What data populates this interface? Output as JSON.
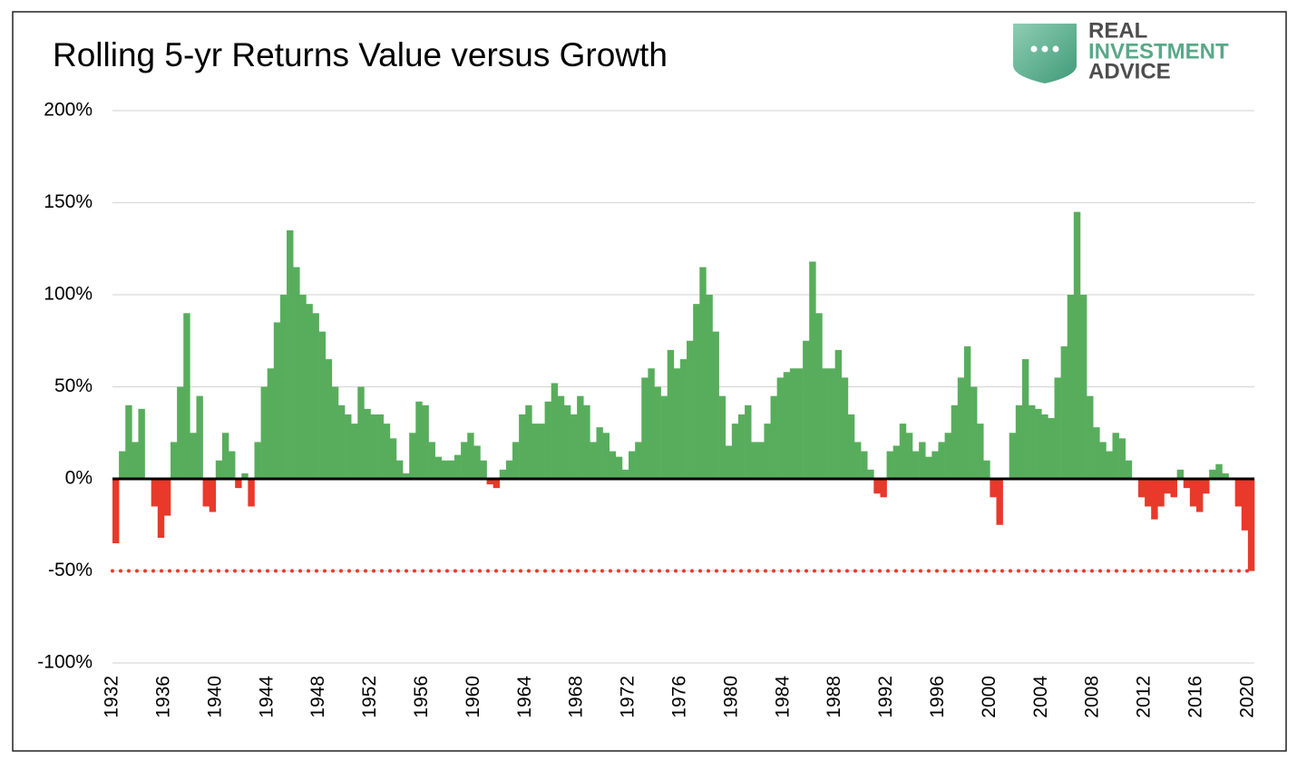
{
  "chart_data": {
    "type": "bar",
    "title": "Rolling 5-yr Returns  Value versus Growth",
    "logo": [
      "REAL",
      "INVESTMENT",
      "ADVICE"
    ],
    "x": [
      1932,
      1932.5,
      1933,
      1933.5,
      1934,
      1934.5,
      1935,
      1935.5,
      1936,
      1936.5,
      1937,
      1937.5,
      1938,
      1938.5,
      1939,
      1939.5,
      1940,
      1940.5,
      1941,
      1941.5,
      1942,
      1942.5,
      1943,
      1943.5,
      1944,
      1944.5,
      1945,
      1945.5,
      1946,
      1946.5,
      1947,
      1947.5,
      1948,
      1948.5,
      1949,
      1949.5,
      1950,
      1950.5,
      1951,
      1951.5,
      1952,
      1952.5,
      1953,
      1953.5,
      1954,
      1954.5,
      1955,
      1955.5,
      1956,
      1956.5,
      1957,
      1957.5,
      1958,
      1958.5,
      1959,
      1959.5,
      1960,
      1960.5,
      1961,
      1961.5,
      1962,
      1962.5,
      1963,
      1963.5,
      1964,
      1964.5,
      1965,
      1965.5,
      1966,
      1966.5,
      1967,
      1967.5,
      1968,
      1968.5,
      1969,
      1969.5,
      1970,
      1970.5,
      1971,
      1971.5,
      1972,
      1972.5,
      1973,
      1973.5,
      1974,
      1974.5,
      1975,
      1975.5,
      1976,
      1976.5,
      1977,
      1977.5,
      1978,
      1978.5,
      1979,
      1979.5,
      1980,
      1980.5,
      1981,
      1981.5,
      1982,
      1982.5,
      1983,
      1983.5,
      1984,
      1984.5,
      1985,
      1985.5,
      1986,
      1986.5,
      1987,
      1987.5,
      1988,
      1988.5,
      1989,
      1989.5,
      1990,
      1990.5,
      1991,
      1991.5,
      1992,
      1992.5,
      1993,
      1993.5,
      1994,
      1994.5,
      1995,
      1995.5,
      1996,
      1996.5,
      1997,
      1997.5,
      1998,
      1998.5,
      1999,
      1999.5,
      2000,
      2000.5,
      2001,
      2001.5,
      2002,
      2002.5,
      2003,
      2003.5,
      2004,
      2004.5,
      2005,
      2005.5,
      2006,
      2006.5,
      2007,
      2007.5,
      2008,
      2008.5,
      2009,
      2009.5,
      2010,
      2010.5,
      2011,
      2011.5,
      2012,
      2012.5,
      2013,
      2013.5,
      2014,
      2014.5,
      2015,
      2015.5,
      2016,
      2016.5,
      2017,
      2017.5,
      2018,
      2018.5,
      2019,
      2019.5,
      2020
    ],
    "values": [
      -35,
      15,
      40,
      20,
      38,
      0,
      -15,
      -32,
      -20,
      20,
      50,
      90,
      25,
      45,
      -15,
      -18,
      10,
      25,
      15,
      -5,
      3,
      -15,
      20,
      50,
      60,
      85,
      100,
      135,
      115,
      100,
      95,
      90,
      80,
      65,
      50,
      40,
      35,
      30,
      50,
      38,
      35,
      35,
      30,
      22,
      10,
      3,
      25,
      42,
      40,
      20,
      12,
      10,
      10,
      13,
      20,
      25,
      18,
      10,
      -3,
      -5,
      5,
      10,
      20,
      35,
      40,
      30,
      30,
      42,
      52,
      45,
      40,
      35,
      45,
      40,
      20,
      28,
      25,
      15,
      12,
      5,
      15,
      20,
      55,
      60,
      50,
      45,
      70,
      60,
      65,
      75,
      95,
      115,
      100,
      80,
      45,
      18,
      30,
      35,
      40,
      20,
      20,
      30,
      45,
      55,
      58,
      60,
      60,
      75,
      118,
      90,
      60,
      60,
      70,
      55,
      35,
      20,
      15,
      5,
      -8,
      -10,
      15,
      18,
      30,
      25,
      15,
      20,
      12,
      15,
      20,
      25,
      40,
      55,
      72,
      50,
      30,
      10,
      -10,
      -25,
      0,
      25,
      40,
      65,
      40,
      38,
      35,
      33,
      55,
      72,
      100,
      145,
      100,
      45,
      28,
      20,
      15,
      25,
      22,
      10,
      0,
      -10,
      -15,
      -22,
      -15,
      -8,
      -10,
      5,
      -5,
      -15,
      -18,
      -8,
      5,
      8,
      3,
      0,
      -15,
      -28,
      -50
    ],
    "positive_color": "#58ad5c",
    "negative_color": "#e8392b",
    "reference_line": {
      "value": -50,
      "color": "#e8392b",
      "style": "dotted"
    },
    "xlim": [
      1932,
      2020.5
    ],
    "xticks": [
      1932,
      1936,
      1940,
      1944,
      1948,
      1952,
      1956,
      1960,
      1964,
      1968,
      1972,
      1976,
      1980,
      1984,
      1988,
      1992,
      1996,
      2000,
      2004,
      2008,
      2012,
      2016,
      2020
    ],
    "ylim": [
      -100,
      200
    ],
    "yticks": [
      {
        "value": -100,
        "label": "-100%"
      },
      {
        "value": -50,
        "label": "-50%"
      },
      {
        "value": 0,
        "label": "0%"
      },
      {
        "value": 50,
        "label": "50%"
      },
      {
        "value": 100,
        "label": "100%"
      },
      {
        "value": 150,
        "label": "150%"
      },
      {
        "value": 200,
        "label": "200%"
      }
    ],
    "grid": true
  }
}
